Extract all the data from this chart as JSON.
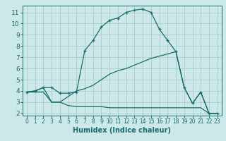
{
  "xlabel": "Humidex (Indice chaleur)",
  "bg_color": "#cce8e8",
  "grid_color": "#aacccc",
  "line_color": "#1a6b6b",
  "xlim": [
    -0.5,
    23.5
  ],
  "ylim": [
    1.8,
    11.6
  ],
  "xticks": [
    0,
    1,
    2,
    3,
    4,
    5,
    6,
    7,
    8,
    9,
    10,
    11,
    12,
    13,
    14,
    15,
    16,
    17,
    18,
    19,
    20,
    21,
    22,
    23
  ],
  "yticks": [
    2,
    3,
    4,
    5,
    6,
    7,
    8,
    9,
    10,
    11
  ],
  "line1_x": [
    0,
    1,
    2,
    3,
    4,
    5,
    6,
    7,
    8,
    9,
    10,
    11,
    12,
    13,
    14,
    15,
    16,
    17,
    18,
    19,
    20,
    21,
    22,
    23
  ],
  "line1_y": [
    3.9,
    4.0,
    4.3,
    4.3,
    3.8,
    3.8,
    3.9,
    7.6,
    8.5,
    9.7,
    10.3,
    10.5,
    11.0,
    11.2,
    11.3,
    11.0,
    9.5,
    8.5,
    7.5,
    4.3,
    2.9,
    3.9,
    2.0,
    2.0
  ],
  "line2_x": [
    0,
    1,
    2,
    3,
    4,
    5,
    6,
    7,
    8,
    9,
    10,
    11,
    12,
    13,
    14,
    15,
    16,
    17,
    18,
    19,
    20,
    21,
    22,
    23
  ],
  "line2_y": [
    3.9,
    4.0,
    4.3,
    3.0,
    3.0,
    3.5,
    4.0,
    4.2,
    4.5,
    5.0,
    5.5,
    5.8,
    6.0,
    6.3,
    6.6,
    6.9,
    7.1,
    7.3,
    7.5,
    4.3,
    2.9,
    3.9,
    2.0,
    2.0
  ],
  "line3_x": [
    0,
    1,
    2,
    3,
    4,
    5,
    6,
    7,
    8,
    9,
    10,
    11,
    12,
    13,
    14,
    15,
    16,
    17,
    18,
    19,
    20,
    21,
    22,
    23
  ],
  "line3_y": [
    3.9,
    3.9,
    3.9,
    3.0,
    3.0,
    2.7,
    2.6,
    2.6,
    2.6,
    2.6,
    2.5,
    2.5,
    2.5,
    2.5,
    2.5,
    2.5,
    2.5,
    2.5,
    2.5,
    2.5,
    2.5,
    2.5,
    2.0,
    2.0
  ],
  "xlabel_fontsize": 7,
  "tick_fontsize_x": 5.5,
  "tick_fontsize_y": 6.5
}
